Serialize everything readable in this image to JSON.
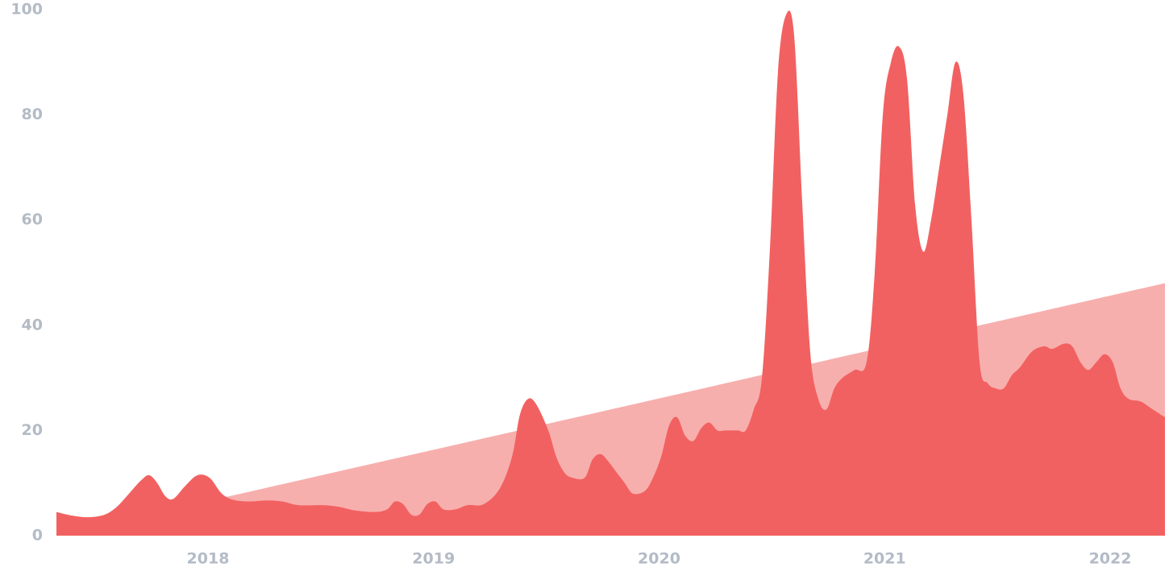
{
  "chart_data": {
    "type": "area",
    "xlim": [
      2017.328,
      2022.243
    ],
    "xticks": [
      2018,
      2019,
      2020,
      2021,
      2022
    ],
    "ylim": [
      0,
      100
    ],
    "yticks": [
      0,
      20,
      40,
      60,
      80,
      100
    ],
    "series": [
      {
        "color": "#f7afad",
        "x": [
          2017.328,
          2022.243
        ],
        "values": [
          0,
          48
        ]
      },
      {
        "color": "#f26161",
        "x": [
          2017.328,
          2017.399,
          2017.471,
          2017.542,
          2017.596,
          2017.65,
          2017.703,
          2017.739,
          2017.775,
          2017.811,
          2017.846,
          2017.9,
          2017.954,
          2018.007,
          2018.061,
          2018.114,
          2018.186,
          2018.257,
          2018.329,
          2018.4,
          2018.508,
          2018.579,
          2018.651,
          2018.74,
          2018.794,
          2018.829,
          2018.865,
          2018.901,
          2018.937,
          2018.972,
          2019.008,
          2019.044,
          2019.097,
          2019.151,
          2019.223,
          2019.294,
          2019.348,
          2019.383,
          2019.419,
          2019.455,
          2019.509,
          2019.544,
          2019.58,
          2019.616,
          2019.67,
          2019.705,
          2019.741,
          2019.777,
          2019.812,
          2019.848,
          2019.884,
          2019.937,
          2019.973,
          2020.009,
          2020.045,
          2020.08,
          2020.116,
          2020.152,
          2020.188,
          2020.223,
          2020.259,
          2020.295,
          2020.349,
          2020.384,
          2020.42,
          2020.456,
          2020.492,
          2020.527,
          2020.563,
          2020.599,
          2020.635,
          2020.67,
          2020.706,
          2020.742,
          2020.777,
          2020.813,
          2020.867,
          2020.92,
          2020.956,
          2020.992,
          2021.028,
          2021.063,
          2021.099,
          2021.135,
          2021.171,
          2021.206,
          2021.242,
          2021.278,
          2021.314,
          2021.349,
          2021.385,
          2021.421,
          2021.457,
          2021.492,
          2021.528,
          2021.564,
          2021.6,
          2021.653,
          2021.707,
          2021.743,
          2021.796,
          2021.832,
          2021.868,
          2021.903,
          2021.939,
          2021.975,
          2022.011,
          2022.046,
          2022.082,
          2022.136,
          2022.189,
          2022.243
        ],
        "values": [
          4.5,
          3.8,
          3.5,
          4,
          5.5,
          8,
          10.5,
          11.5,
          10,
          7.5,
          7,
          9.5,
          11.5,
          11,
          8,
          6.8,
          6.5,
          6.7,
          6.5,
          5.8,
          5.8,
          5.5,
          4.8,
          4.5,
          5,
          6.5,
          6,
          4,
          4,
          6,
          6.5,
          5,
          5,
          5.8,
          6,
          9,
          15,
          23,
          26,
          25,
          20,
          15,
          12,
          11,
          11,
          14.5,
          15.5,
          14,
          12,
          10,
          8,
          8.5,
          11,
          15,
          21,
          22.5,
          19,
          18,
          20.5,
          21.5,
          20,
          20,
          20,
          20,
          24,
          30,
          55,
          88,
          99,
          95,
          63,
          35,
          26,
          24,
          28,
          30,
          31.5,
          33,
          50,
          80,
          90,
          93,
          87,
          63,
          54,
          60,
          70,
          80,
          90,
          84,
          60,
          33,
          29,
          28,
          28,
          30.5,
          32,
          35,
          36,
          35.5,
          36.5,
          36,
          33,
          31.5,
          33,
          34.5,
          33,
          28,
          26,
          25.5,
          24,
          22.5
        ]
      }
    ]
  }
}
